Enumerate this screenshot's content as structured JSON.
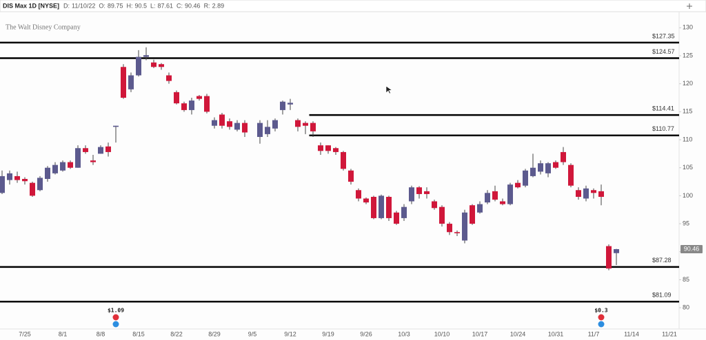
{
  "header": {
    "symbol": "DIS Max 1D [NYSE]",
    "fields": [
      {
        "label": "D:",
        "value": "11/10/22"
      },
      {
        "label": "O:",
        "value": 89.75
      },
      {
        "label": "H:",
        "value": 90.5
      },
      {
        "label": "L:",
        "value": 87.61
      },
      {
        "label": "C:",
        "value": 90.46
      },
      {
        "label": "R:",
        "value": 2.89
      }
    ]
  },
  "watermark": "The Walt Disney Company",
  "chart_data": {
    "type": "candlestick",
    "categories": [
      null,
      null,
      null,
      "7/25",
      null,
      null,
      null,
      null,
      "8/1",
      null,
      null,
      null,
      null,
      "8/8",
      null,
      null,
      null,
      null,
      "8/15",
      null,
      null,
      null,
      null,
      "8/22",
      null,
      null,
      null,
      null,
      "8/29",
      null,
      null,
      null,
      null,
      "9/5",
      null,
      null,
      null,
      null,
      "9/12",
      null,
      null,
      null,
      null,
      "9/19",
      null,
      null,
      null,
      null,
      "9/26",
      null,
      null,
      null,
      null,
      "10/3",
      null,
      null,
      null,
      null,
      "10/10",
      null,
      null,
      null,
      null,
      "10/17",
      null,
      null,
      null,
      null,
      "10/24",
      null,
      null,
      null,
      null,
      "10/31",
      null,
      null,
      null,
      null,
      "11/7",
      null,
      null,
      null,
      null,
      "11/14",
      null,
      null,
      null,
      null,
      "11/21"
    ],
    "open": [
      100.5,
      102.8,
      103.5,
      103,
      102.3,
      101,
      103,
      104,
      104.5,
      106,
      105,
      108.5,
      106.3,
      107.5,
      108.8,
      112.3,
      123,
      119,
      121.5,
      124.8,
      123.8,
      123.5,
      121.5,
      118.5,
      116.5,
      115.3,
      117.8,
      117.8,
      112.5,
      114.5,
      113.3,
      111.8,
      113,
      null,
      110.5,
      111,
      112,
      115.3,
      116.3,
      113.5,
      113,
      113,
      109,
      109,
      108.5,
      107.8,
      104.5,
      101,
      99.5,
      99.8,
      96,
      99.8,
      97,
      96,
      99,
      101.5,
      100.8,
      99,
      98,
      95,
      93.5,
      92,
      98.3,
      97,
      98.8,
      100.8,
      99,
      98.5,
      102.3,
      101.8,
      103.5,
      104.3,
      104,
      106,
      107.8,
      105.5,
      101,
      99.5,
      101,
      100.8,
      91,
      89.75,
      null,
      null,
      null,
      null,
      null,
      null,
      null
    ],
    "high": [
      104.5,
      104.5,
      104.3,
      103.3,
      102.5,
      103.5,
      105.3,
      106,
      106.3,
      106.3,
      109,
      109,
      107.3,
      109,
      109.5,
      112.5,
      123.5,
      122,
      126,
      126.5,
      124.3,
      123.7,
      122,
      118.8,
      116.8,
      117.5,
      118,
      118.2,
      114,
      114.8,
      113.8,
      113.5,
      113.5,
      null,
      113.5,
      113.5,
      113.8,
      117,
      117.3,
      113.8,
      113.3,
      113.3,
      109.5,
      109,
      108.7,
      108,
      104.8,
      101.3,
      99.7,
      100,
      100.2,
      100,
      97.3,
      98.5,
      101.8,
      101.7,
      101.5,
      99.3,
      98.3,
      95.3,
      93.8,
      97.5,
      98.5,
      99,
      101,
      101.8,
      99.5,
      102.3,
      102.8,
      104.8,
      107.5,
      106.3,
      106,
      106.3,
      108.7,
      105.8,
      101.5,
      101.8,
      101.3,
      102,
      91.3,
      90.5,
      null,
      null,
      null,
      null,
      null,
      null,
      null
    ],
    "low": [
      100.3,
      102,
      102.3,
      102,
      99.8,
      100.8,
      102.5,
      103.8,
      104.3,
      104.8,
      105,
      107.5,
      105.5,
      107.5,
      107,
      109.5,
      117.3,
      118.5,
      121.3,
      124.2,
      122.8,
      122.5,
      120,
      116.3,
      115,
      114.5,
      117,
      114.7,
      112,
      112,
      111.8,
      111.5,
      110.5,
      null,
      109.3,
      110.5,
      111.5,
      114.5,
      115.3,
      111.5,
      111,
      110.5,
      107.3,
      107.5,
      107.3,
      104.5,
      102,
      99,
      98.5,
      95.8,
      95.8,
      95.5,
      94.8,
      95.5,
      98.5,
      99.5,
      99.5,
      97.5,
      94.5,
      93,
      92.8,
      91.5,
      94.8,
      96.8,
      98.5,
      99,
      98.3,
      98.3,
      101.3,
      101.5,
      103.3,
      103.8,
      103.3,
      104.8,
      105.5,
      101.5,
      99.3,
      99,
      99.5,
      98.3,
      86.7,
      87.61,
      null,
      null,
      null,
      null,
      null,
      null,
      null
    ],
    "close": [
      103.5,
      104,
      102.8,
      102.6,
      100,
      103.2,
      105,
      105.5,
      106,
      105,
      108.5,
      107.8,
      106,
      108.7,
      107.8,
      112.5,
      117.5,
      121.5,
      124.8,
      125.1,
      123,
      123,
      120.5,
      116.5,
      115.3,
      117,
      117.3,
      115,
      113.5,
      112.5,
      112.3,
      113,
      111.3,
      null,
      113,
      112.3,
      113.5,
      116.8,
      116.6,
      112.3,
      112.5,
      111.5,
      108,
      108,
      107.8,
      104.8,
      102.5,
      99.5,
      98.8,
      96,
      100,
      96,
      95,
      98,
      101.5,
      100.3,
      100.3,
      97.8,
      95,
      93.5,
      93.3,
      97,
      95,
      98.5,
      100.5,
      99.3,
      98.5,
      102,
      101.5,
      104.5,
      105,
      105.8,
      105.8,
      105,
      106,
      101.8,
      99.8,
      101.3,
      100.5,
      99.8,
      87,
      90.46,
      null,
      null,
      null,
      null,
      null,
      null,
      null
    ],
    "up_color": "#5c5a8e",
    "down_color": "#d0173a",
    "ylim": [
      76.2,
      132.5
    ],
    "yticks": [
      80,
      85,
      90,
      95,
      100,
      105,
      110,
      115,
      120,
      125,
      130
    ],
    "levels": [
      {
        "value": 127.35,
        "label": "$127.35"
      },
      {
        "value": 124.57,
        "label": "$124.57"
      },
      {
        "value": 114.41,
        "label": "$114.41"
      },
      {
        "value": 110.77,
        "label": "$110.77"
      },
      {
        "value": 87.28,
        "label": "$87.28"
      },
      {
        "value": 81.09,
        "label": "$81.09"
      }
    ],
    "dividends": [
      {
        "value": 1.09,
        "label": "$1.09"
      },
      {
        "value": 0.3,
        "label": "$0.3"
      }
    ]
  }
}
